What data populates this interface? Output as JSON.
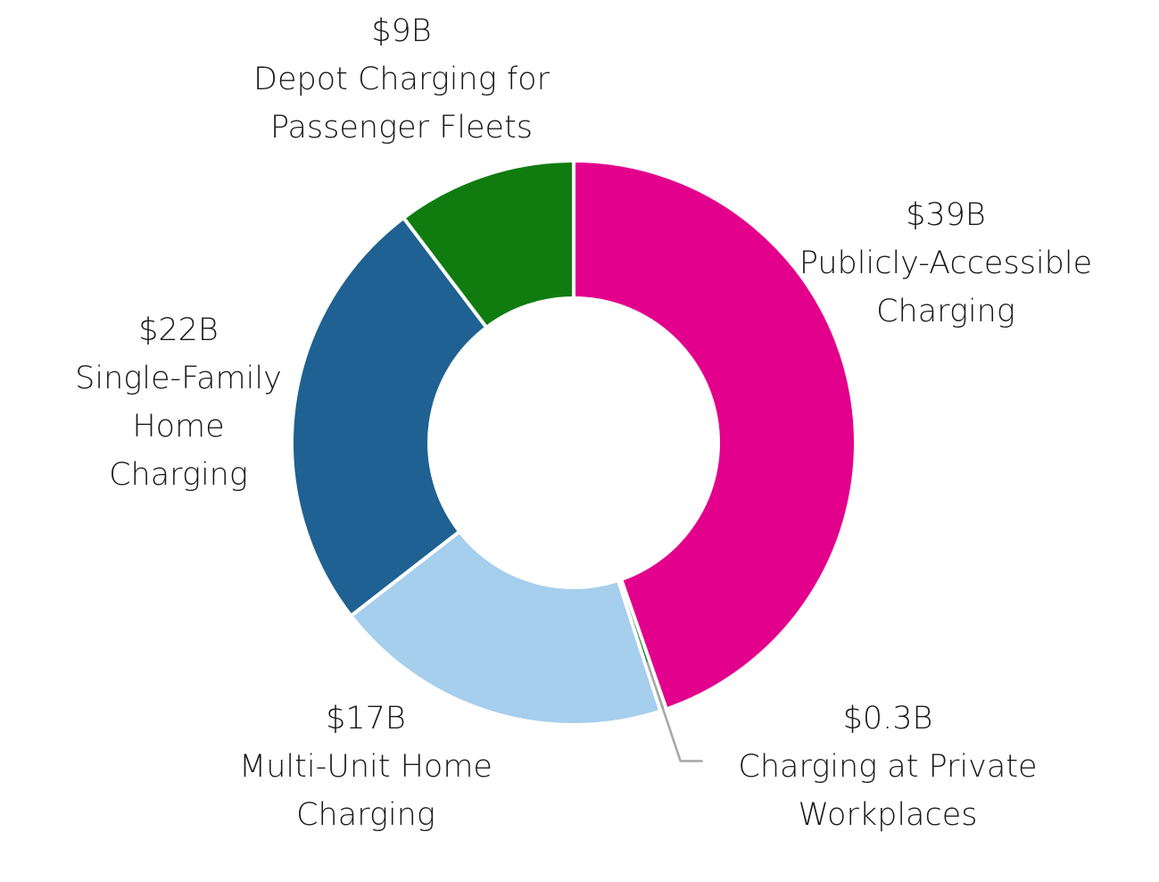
{
  "chart_data": {
    "type": "pie",
    "variant": "donut",
    "units": "billion USD",
    "slices": [
      {
        "id": "public",
        "value": 39,
        "value_label": "$39B",
        "name_lines": [
          "Publicly-Accessible",
          "Charging"
        ],
        "color": "#E3008C"
      },
      {
        "id": "workplace",
        "value": 0.3,
        "value_label": "$0.3B",
        "name_lines": [
          "Charging at Private",
          "Workplaces"
        ],
        "color": "#107C10"
      },
      {
        "id": "multi",
        "value": 17,
        "value_label": "$17B",
        "name_lines": [
          "Multi-Unit Home",
          "Charging"
        ],
        "color": "#A6CEED"
      },
      {
        "id": "single",
        "value": 22,
        "value_label": "$22B",
        "name_lines": [
          "Single-Family",
          "Home",
          "Charging"
        ],
        "color": "#1F6192"
      },
      {
        "id": "depot",
        "value": 9,
        "value_label": "$9B",
        "name_lines": [
          "Depot Charging for",
          "Passenger Fleets"
        ],
        "color": "#107C10"
      }
    ],
    "leader_line_color": "#A6A6A6",
    "leader_line_for": "workplace",
    "start_angle": "12 o'clock",
    "direction": "clockwise",
    "legend": "none"
  }
}
